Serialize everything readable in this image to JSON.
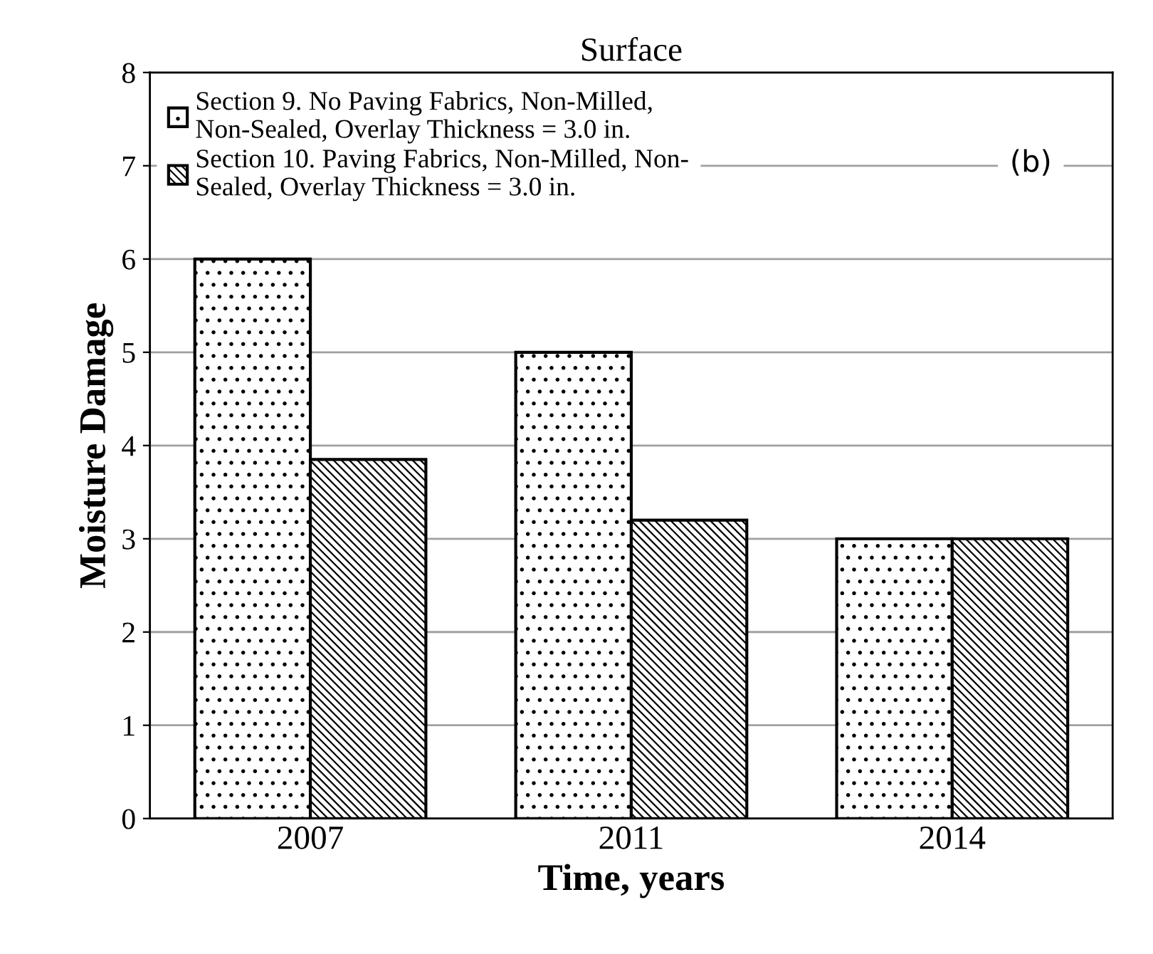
{
  "chart_data": {
    "type": "bar",
    "title": "Surface",
    "xlabel": "Time, years",
    "ylabel": "Moisture Damage",
    "categories": [
      "2007",
      "2011",
      "2014"
    ],
    "series": [
      {
        "name": "Section 9. No Paving Fabrics, Non-Milled,\nNon-Sealed, Overlay Thickness = 3.0 in.",
        "color": "#000000",
        "values": [
          6,
          5,
          3
        ]
      },
      {
        "name": "Section 10. Paving Fabrics, Non-Milled, Non-\nSealed, Overlay Thickness = 3.0 in.",
        "color": "#000000",
        "values": [
          3.85,
          3.2,
          3.0
        ]
      }
    ],
    "ylim": [
      0,
      8
    ],
    "yticks": [
      0,
      1,
      2,
      3,
      4,
      5,
      6,
      7,
      8
    ],
    "grid": "y",
    "legend": "top left",
    "annotations": [
      "(b)"
    ]
  }
}
